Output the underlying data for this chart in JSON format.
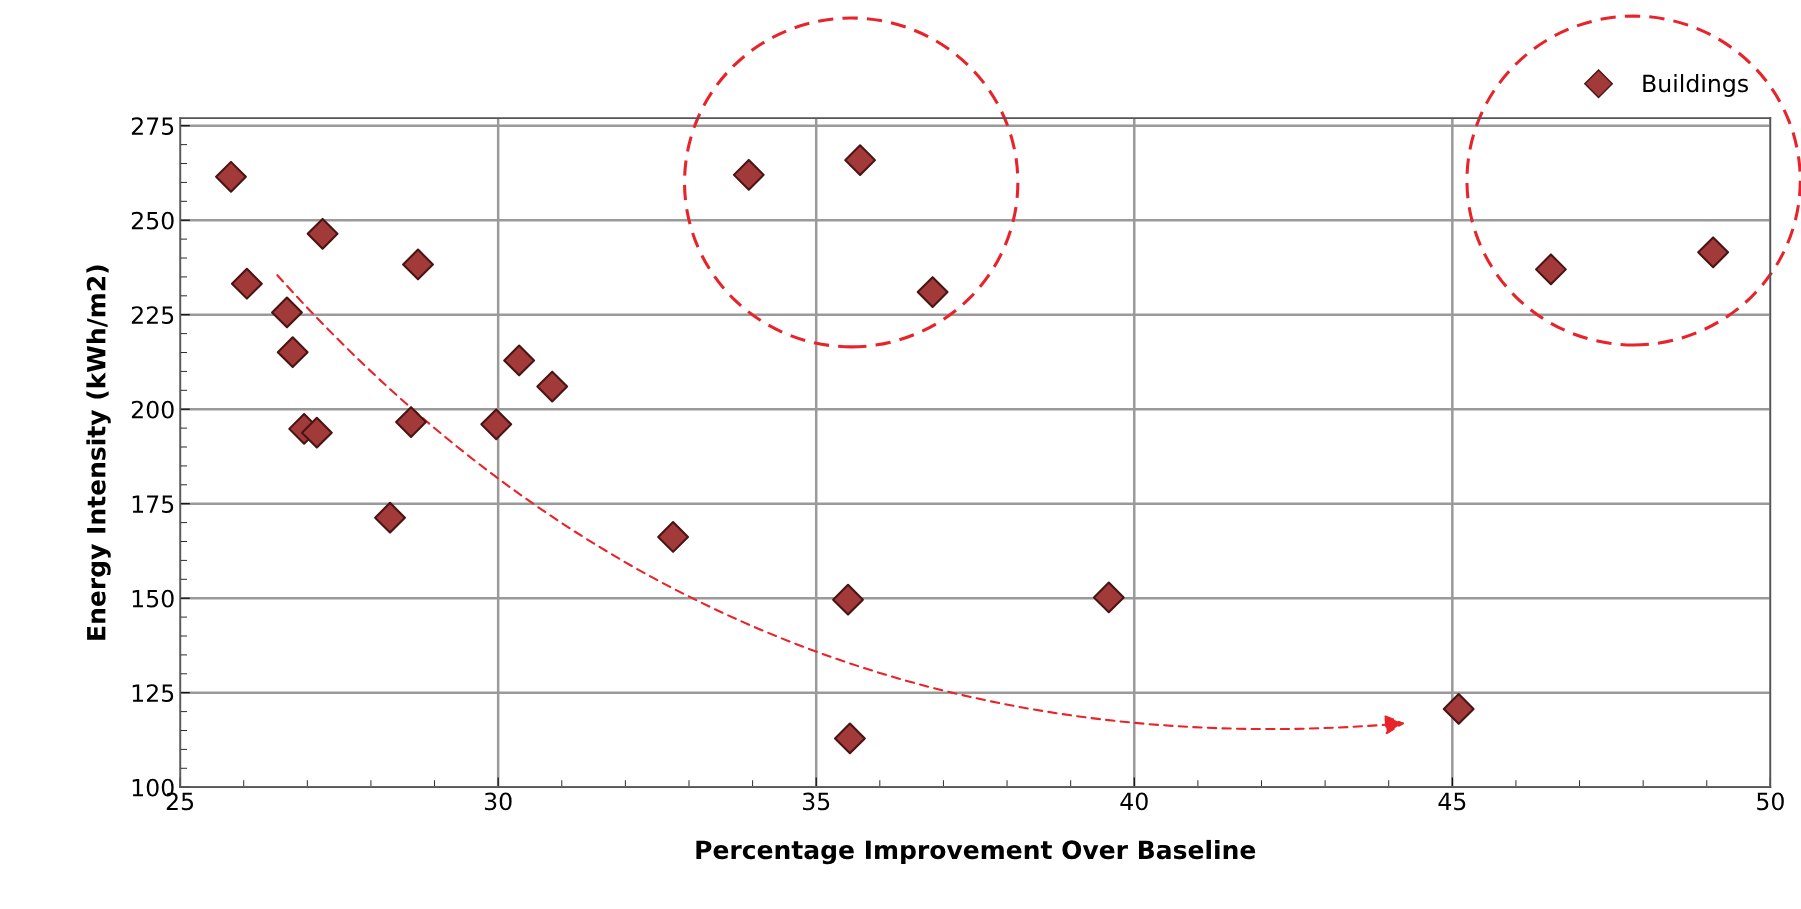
{
  "chart_data": {
    "type": "scatter",
    "xlabel": "Percentage Improvement Over Baseline",
    "ylabel": "Energy Intensity (kWh/m2)",
    "xlim": [
      25,
      50
    ],
    "ylim": [
      100,
      277
    ],
    "xticks": [
      25,
      30,
      35,
      40,
      45,
      50
    ],
    "yticks": [
      100,
      125,
      150,
      175,
      200,
      225,
      250,
      275
    ],
    "grid": true,
    "legend": "top right",
    "marker": "diamond",
    "series": [
      {
        "name": "Buildings",
        "color": "#a33a3a",
        "x": [
          25.8,
          26.05,
          27.24,
          26.68,
          26.77,
          26.95,
          27.15,
          28.74,
          28.63,
          28.3,
          29.97,
          30.33,
          30.85,
          32.75,
          33.94,
          35.69,
          36.83,
          35.5,
          35.53,
          39.6,
          45.1,
          46.55,
          49.1
        ],
        "values": [
          261.5,
          233.2,
          246.4,
          225.6,
          215.1,
          194.8,
          193.8,
          238.3,
          196.6,
          171.3,
          196.0,
          212.9,
          206.0,
          166.2,
          262.0,
          265.9,
          231.0,
          149.6,
          112.9,
          150.2,
          120.7,
          237.0,
          241.5
        ]
      }
    ]
  }
}
